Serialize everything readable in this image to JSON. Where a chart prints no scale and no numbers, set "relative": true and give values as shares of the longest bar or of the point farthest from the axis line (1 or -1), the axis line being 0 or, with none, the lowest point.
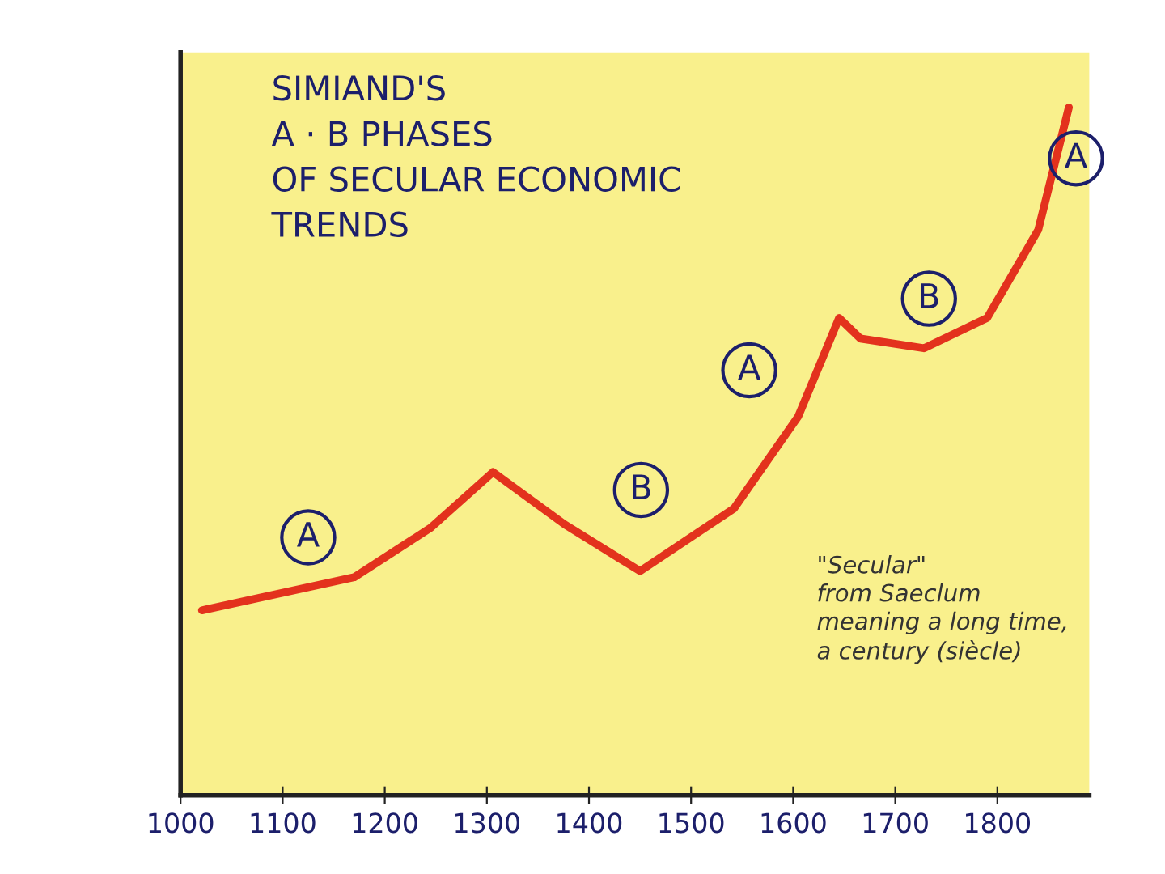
{
  "chart_data": {
    "type": "line",
    "title": "SIMIAND'S\nA · B PHASES\nOF SECULAR ECONOMIC\nTRENDS",
    "relative": true,
    "x": [
      1021,
      1170,
      1245,
      1306,
      1376,
      1450,
      1542,
      1605,
      1645,
      1666,
      1728,
      1790,
      1840,
      1870
    ],
    "series": [
      {
        "color": "#e3321d",
        "values": [
          0.269,
          0.317,
          0.389,
          0.47,
          0.394,
          0.326,
          0.417,
          0.551,
          0.694,
          0.664,
          0.65,
          0.694,
          0.822,
          1.0
        ]
      }
    ],
    "xlim": [
      1000,
      1890
    ],
    "xticks": [
      1000,
      1100,
      1200,
      1300,
      1400,
      1500,
      1600,
      1700,
      1800
    ],
    "grid": false,
    "legend": false,
    "marker": "none",
    "line_style": "solid",
    "annotations": [
      {
        "text": "A",
        "x": 1125,
        "y": 0.375
      },
      {
        "text": "B",
        "x": 1451,
        "y": 0.444
      },
      {
        "text": "A",
        "x": 1557,
        "y": 0.618
      },
      {
        "text": "B",
        "x": 1733,
        "y": 0.722
      },
      {
        "text": "A",
        "x": 1877,
        "y": 0.926
      },
      "\"Secular\"\nfrom Saeclum\nmeaning a long time,\na century (siècle)"
    ]
  }
}
